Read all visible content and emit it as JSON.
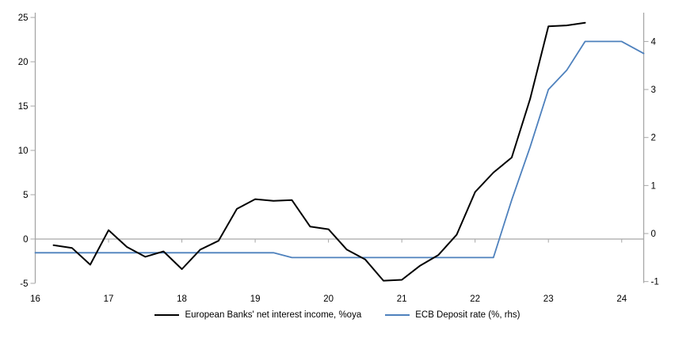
{
  "chart_data": {
    "type": "line",
    "title": "",
    "x_axis": {
      "min": 16,
      "max": 24.3,
      "ticks": [
        16,
        17,
        18,
        19,
        20,
        21,
        22,
        23,
        24
      ],
      "unit": "year (20xx)"
    },
    "left_axis": {
      "min": -4.96,
      "max": 25.54,
      "ticks": [
        25,
        20,
        15,
        10,
        5,
        0,
        -5
      ]
    },
    "right_axis": {
      "min": -1.03,
      "max": 4.6,
      "ticks": [
        4,
        3,
        2,
        1,
        0,
        -1
      ]
    },
    "zero_line": true,
    "grid": "zero-line-only",
    "legend_position": "bottom",
    "series": [
      {
        "name": "European Banks' net interest income, %oya",
        "axis": "left",
        "color": "#000000",
        "stroke_width": 2,
        "points": [
          [
            16.25,
            -0.7
          ],
          [
            16.5,
            -1.0
          ],
          [
            16.75,
            -2.9
          ],
          [
            17.0,
            1.0
          ],
          [
            17.25,
            -0.9
          ],
          [
            17.5,
            -2.0
          ],
          [
            17.75,
            -1.4
          ],
          [
            18.0,
            -3.4
          ],
          [
            18.25,
            -1.2
          ],
          [
            18.5,
            -0.2
          ],
          [
            18.75,
            3.4
          ],
          [
            19.0,
            4.5
          ],
          [
            19.25,
            4.3
          ],
          [
            19.5,
            4.4
          ],
          [
            19.75,
            1.4
          ],
          [
            20.0,
            1.1
          ],
          [
            20.25,
            -1.2
          ],
          [
            20.5,
            -2.3
          ],
          [
            20.75,
            -4.7
          ],
          [
            21.0,
            -4.6
          ],
          [
            21.25,
            -3.0
          ],
          [
            21.5,
            -1.8
          ],
          [
            21.75,
            0.5
          ],
          [
            22.0,
            5.3
          ],
          [
            22.25,
            7.5
          ],
          [
            22.5,
            9.2
          ],
          [
            22.75,
            15.8
          ],
          [
            23.0,
            24.0
          ],
          [
            23.25,
            24.1
          ],
          [
            23.5,
            24.4
          ]
        ]
      },
      {
        "name": "ECB Deposit rate (%, rhs)",
        "axis": "right",
        "color": "#4e81bd",
        "stroke_width": 1.8,
        "points": [
          [
            16.0,
            -0.4
          ],
          [
            19.25,
            -0.4
          ],
          [
            19.5,
            -0.5
          ],
          [
            22.25,
            -0.5
          ],
          [
            22.5,
            0.7
          ],
          [
            22.75,
            1.8
          ],
          [
            23.0,
            3.0
          ],
          [
            23.25,
            3.4
          ],
          [
            23.5,
            4.0
          ],
          [
            23.75,
            4.0
          ],
          [
            24.0,
            4.0
          ],
          [
            24.3,
            3.75
          ]
        ]
      }
    ]
  },
  "colors": {
    "axis": "#a6a6a6",
    "tick_text": "#000000",
    "background": "#ffffff"
  }
}
